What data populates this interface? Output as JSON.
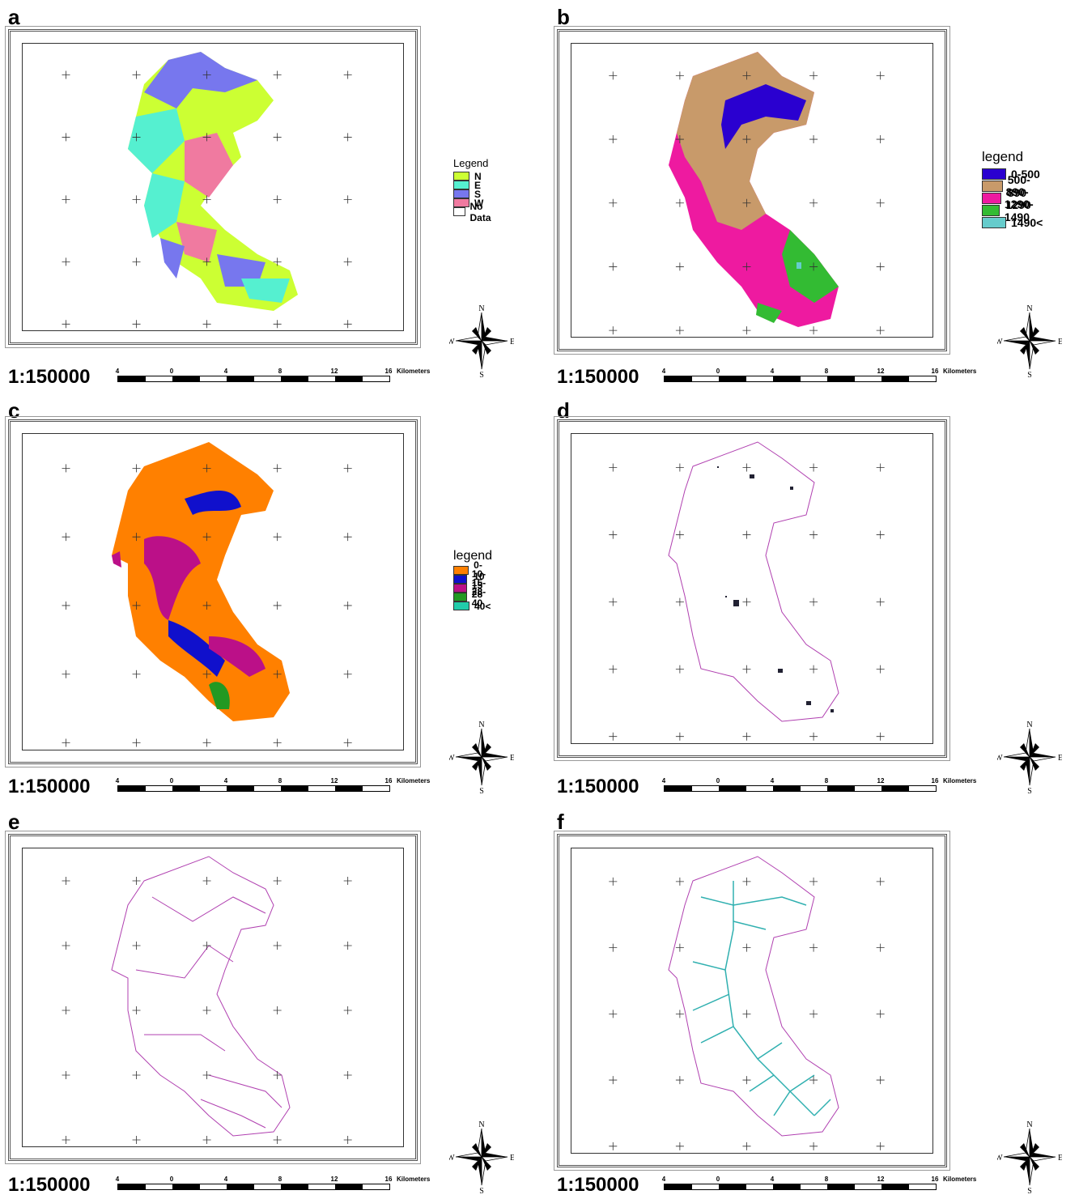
{
  "panels": [
    {
      "id": "a",
      "label": "a",
      "scale_text": "1:150000",
      "legend": {
        "title": "Legend",
        "items": [
          {
            "label": "N",
            "color": "#ccff33"
          },
          {
            "label": "E",
            "color": "#55f0d0"
          },
          {
            "label": "S",
            "color": "#7777ee"
          },
          {
            "label": "W",
            "color": "#f07aa0"
          },
          {
            "label": "No Data",
            "color": "#ffffff"
          }
        ]
      }
    },
    {
      "id": "b",
      "label": "b",
      "scale_text": "1:150000",
      "legend": {
        "title": "legend",
        "items": [
          {
            "label": "0-500",
            "color": "#2a00d0"
          },
          {
            "label": "500-890",
            "color": "#c89a6a"
          },
          {
            "label": "890-1290",
            "color": "#ee1aa0"
          },
          {
            "label": "1290-1490",
            "color": "#33bb33"
          },
          {
            "label": "1490<",
            "color": "#66cccc"
          }
        ]
      }
    },
    {
      "id": "c",
      "label": "c",
      "scale_text": "1:150000",
      "legend": {
        "title": "legend",
        "items": [
          {
            "label": "0-10",
            "color": "#ff8000"
          },
          {
            "label": "10-15",
            "color": "#1010cc"
          },
          {
            "label": "15-28",
            "color": "#bb1088"
          },
          {
            "label": "28-40",
            "color": "#229922"
          },
          {
            "label": "40<",
            "color": "#22ccaa"
          }
        ]
      }
    },
    {
      "id": "d",
      "label": "d",
      "scale_text": "1:150000"
    },
    {
      "id": "e",
      "label": "e",
      "scale_text": "1:150000"
    },
    {
      "id": "f",
      "label": "f",
      "scale_text": "1:150000"
    }
  ],
  "scalebar": {
    "ticks": [
      "4",
      "0",
      "4",
      "8",
      "12",
      "16"
    ],
    "unit": "Kilometers"
  },
  "compass": {
    "n": "N",
    "s": "S",
    "e": "E",
    "w": "W"
  },
  "colors": {
    "boundary": "#b040b0",
    "stream": "#30b0b0",
    "frame": "#555555"
  }
}
